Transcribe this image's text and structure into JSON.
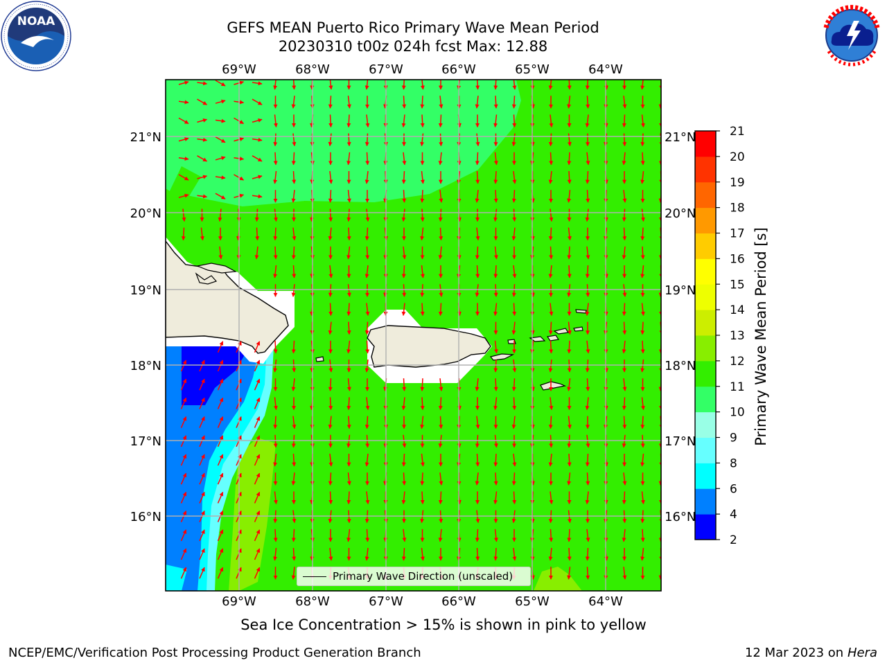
{
  "title": {
    "line1": "GEFS MEAN Puerto Rico Primary Wave Mean Period",
    "line2": "20230310 t00z 024h fcst   Max: 12.88"
  },
  "logos": {
    "left": "noaa-logo",
    "left_text": "NOAA",
    "left_ring": "NATIONAL OCEANIC AND ATMOSPHERIC ADMINISTRATION · U.S. DEPARTMENT OF COMMERCE",
    "right": "nws-logo",
    "right_ring": "NATIONAL WEATHER SERVICE"
  },
  "map": {
    "lon_labels": [
      "69°W",
      "68°W",
      "67°W",
      "66°W",
      "65°W",
      "64°W"
    ],
    "lat_labels": [
      "21°N",
      "20°N",
      "19°N",
      "18°N",
      "17°N",
      "16°N"
    ],
    "legend_label": "Primary Wave Direction (unscaled)",
    "arrow_color": "#ff0000",
    "land_color": "#efecdc"
  },
  "colorbar": {
    "title": "Primary Wave Mean Period [s]",
    "tick_labels": [
      "2",
      "4",
      "6",
      "8",
      "9",
      "10",
      "11",
      "12",
      "13",
      "14",
      "15",
      "16",
      "17",
      "18",
      "19",
      "20",
      "21"
    ],
    "colors": [
      "#0000ff",
      "#0080ff",
      "#00ffff",
      "#66ffff",
      "#99ffe6",
      "#33ff66",
      "#33ee00",
      "#88ee00",
      "#ccee00",
      "#eeff00",
      "#ffff00",
      "#ffcc00",
      "#ff9900",
      "#ff6600",
      "#ff3300",
      "#ff0000"
    ]
  },
  "note": "Sea Ice Concentration > 15% is shown in pink to yellow",
  "footer": {
    "left": "NCEP/EMC/Verification Post Processing Product Generation Branch",
    "right_date": "12 Mar 2023 on",
    "right_machine": "Hera"
  }
}
